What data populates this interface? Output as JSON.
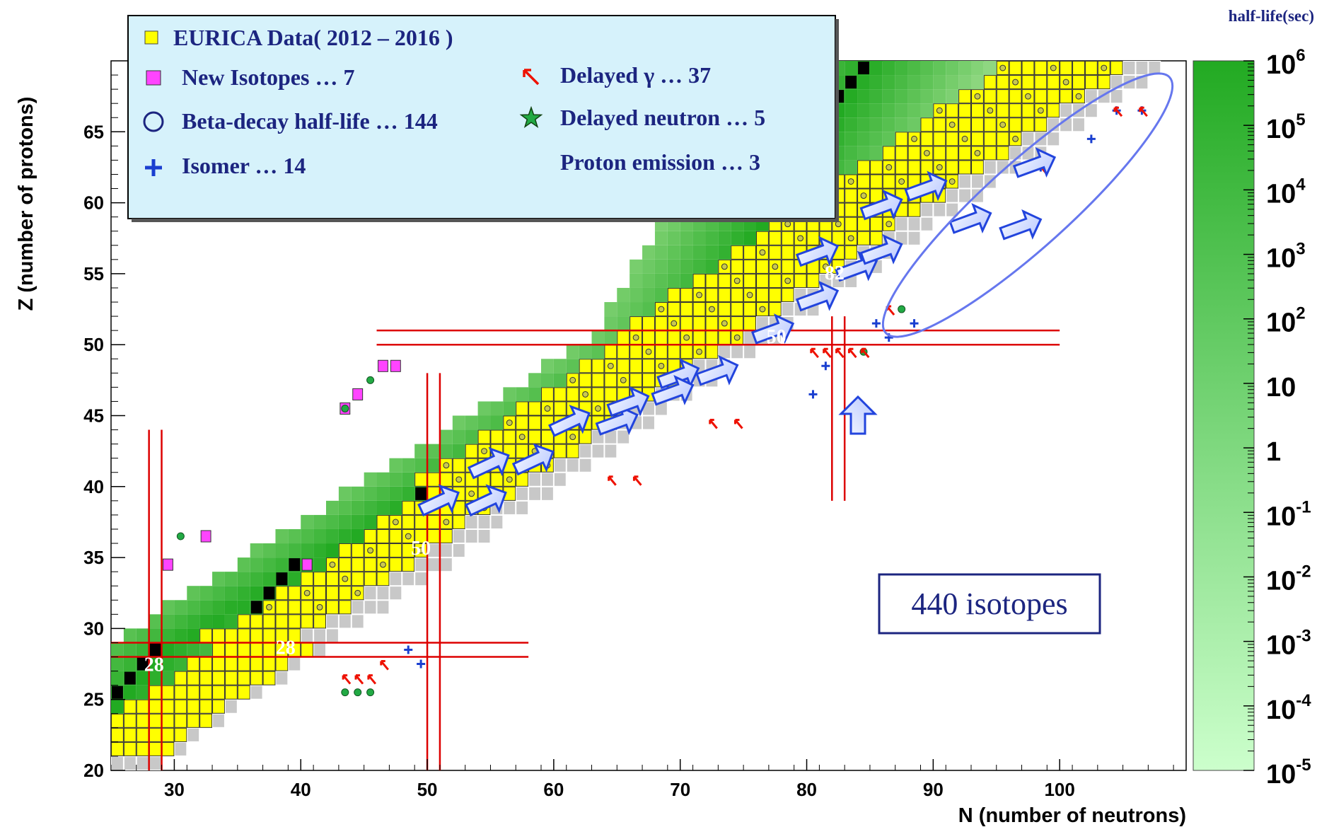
{
  "chart_data": {
    "type": "heatmap",
    "title": "",
    "xlabel": "N (number of neutrons)",
    "ylabel": "Z (number of protons)",
    "xlim": [
      25,
      110
    ],
    "ylim": [
      20,
      70
    ],
    "x_ticks": [
      "30",
      "40",
      "50",
      "60",
      "70",
      "80",
      "90",
      "100"
    ],
    "x_tick_values": [
      30,
      40,
      50,
      60,
      70,
      80,
      90,
      100
    ],
    "y_ticks": [
      "20",
      "25",
      "30",
      "35",
      "40",
      "45",
      "50",
      "55",
      "60",
      "65"
    ],
    "y_tick_values": [
      20,
      25,
      30,
      35,
      40,
      45,
      50,
      55,
      60,
      65
    ],
    "colorbar": {
      "title": "half-life(sec)",
      "scale": "log",
      "range": [
        1e-05,
        1000000.0
      ],
      "ticks": [
        {
          "base": "10",
          "exp": "6"
        },
        {
          "base": "10",
          "exp": "5"
        },
        {
          "base": "10",
          "exp": "4"
        },
        {
          "base": "10",
          "exp": "3"
        },
        {
          "base": "10",
          "exp": "2"
        },
        {
          "base": "10",
          "exp": ""
        },
        {
          "base": "1",
          "exp": ""
        },
        {
          "base": "10",
          "exp": "-1"
        },
        {
          "base": "10",
          "exp": "-2"
        },
        {
          "base": "10",
          "exp": "-3"
        },
        {
          "base": "10",
          "exp": "-4"
        },
        {
          "base": "10",
          "exp": "-5"
        }
      ],
      "colors": [
        "#ccffcc",
        "#22aa22"
      ]
    },
    "magic_numbers": {
      "lines": [
        28,
        50,
        82
      ],
      "labels": [
        {
          "text": "28",
          "n": 28.4,
          "z": 27.0
        },
        {
          "text": "28",
          "n": 38.8,
          "z": 28.2
        },
        {
          "text": "50",
          "n": 49.5,
          "z": 35.2
        },
        {
          "text": "50",
          "n": 77.6,
          "z": 50.1
        },
        {
          "text": "82",
          "n": 82.2,
          "z": 54.6
        }
      ]
    },
    "legend": [
      {
        "marker": "yellow-square",
        "label": "EURICA Data( 2012 – 2016 )"
      },
      {
        "marker": "magenta-square",
        "label": "New Isotopes … 7"
      },
      {
        "marker": "circle",
        "label": "Beta-decay half-life … 144"
      },
      {
        "marker": "blue-cross",
        "label": "Isomer  … 14"
      },
      {
        "marker": "red-arrow",
        "label": "Delayed γ … 37"
      },
      {
        "marker": "green-star",
        "label": "Delayed neutron  … 5"
      },
      {
        "marker": "none",
        "label": "Proton emission  … 3"
      }
    ],
    "annotation": "440 isotopes",
    "series": [
      {
        "name": "EURICA Data( 2012 – 2016 )",
        "count": 440
      },
      {
        "name": "New Isotopes",
        "count": 7
      },
      {
        "name": "Beta-decay half-life",
        "count": 144
      },
      {
        "name": "Isomer",
        "count": 14
      },
      {
        "name": "Delayed γ",
        "count": 37
      },
      {
        "name": "Delayed neutron",
        "count": 5
      },
      {
        "name": "Proton emission",
        "count": 3
      }
    ],
    "grid": false,
    "legend_position": "top-left",
    "colors": {
      "eurica": "#ffff00",
      "new_isotope": "#ff44ff",
      "stable": "#000000",
      "predicted": "#c8c8c8",
      "magic_line": "#dd0000",
      "arrow": "#2244dd",
      "legend_bg": "#d6f2fb",
      "ellipse": "#6677ee"
    }
  }
}
